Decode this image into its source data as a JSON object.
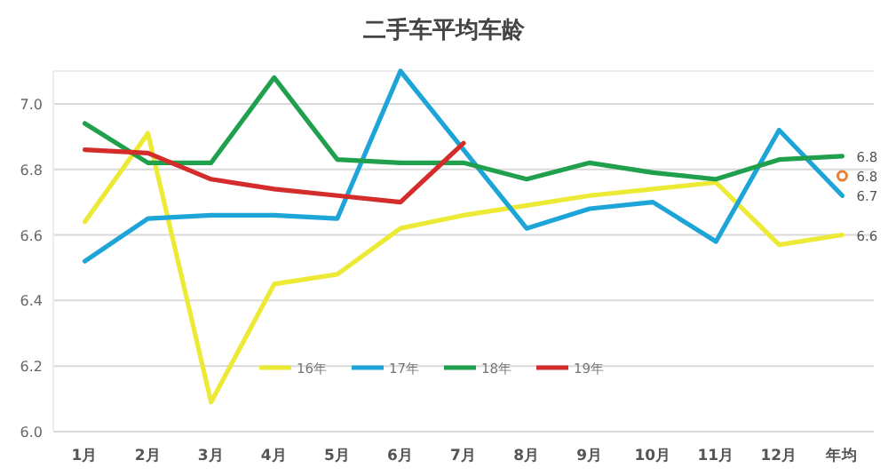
{
  "chart_data": {
    "type": "line",
    "title": "二手车平均车龄",
    "categories": [
      "1月",
      "2月",
      "3月",
      "4月",
      "5月",
      "6月",
      "7月",
      "8月",
      "9月",
      "10月",
      "11月",
      "12月",
      "年均"
    ],
    "series": [
      {
        "name": "16年",
        "color": "#ecea35",
        "values": [
          6.64,
          6.91,
          6.09,
          6.45,
          6.48,
          6.62,
          6.66,
          6.69,
          6.72,
          6.74,
          6.76,
          6.57,
          6.6
        ],
        "value_labels": [
          null,
          null,
          null,
          null,
          null,
          null,
          null,
          null,
          null,
          null,
          null,
          null,
          "6.6"
        ]
      },
      {
        "name": "17年",
        "color": "#1ea5d8",
        "values": [
          6.52,
          6.65,
          6.66,
          6.66,
          6.65,
          7.1,
          6.86,
          6.62,
          6.68,
          6.7,
          6.58,
          6.92,
          6.72
        ],
        "value_labels": [
          null,
          null,
          null,
          null,
          null,
          null,
          null,
          null,
          null,
          null,
          null,
          null,
          "6.7"
        ]
      },
      {
        "name": "18年",
        "color": "#20a04c",
        "values": [
          6.94,
          6.82,
          6.82,
          7.08,
          6.83,
          6.82,
          6.82,
          6.77,
          6.82,
          6.79,
          6.77,
          6.83,
          6.84
        ],
        "value_labels": [
          null,
          null,
          null,
          null,
          null,
          null,
          null,
          null,
          null,
          null,
          null,
          null,
          "6.8"
        ]
      },
      {
        "name": "19年",
        "color": "#d42b2b",
        "values": [
          6.86,
          6.85,
          6.77,
          6.74,
          6.72,
          6.7,
          6.88,
          null,
          null,
          null,
          null,
          null,
          null
        ]
      },
      {
        "type": "scatter",
        "marker": "circle",
        "color": "#e8803a",
        "values": [
          null,
          null,
          null,
          null,
          null,
          null,
          null,
          null,
          null,
          null,
          null,
          null,
          6.78
        ],
        "value_labels": [
          null,
          null,
          null,
          null,
          null,
          null,
          null,
          null,
          null,
          null,
          null,
          null,
          "6.8"
        ]
      }
    ],
    "ylim": [
      6.0,
      7.1
    ],
    "yticks": [
      {
        "value": 6.0,
        "label": "6.0"
      },
      {
        "value": 6.2,
        "label": "6.2"
      },
      {
        "value": 6.4,
        "label": "6.4"
      },
      {
        "value": 6.6,
        "label": "6.6"
      },
      {
        "value": 6.8,
        "label": "6.8"
      },
      {
        "value": 7.0,
        "label": "7.0"
      }
    ],
    "grid": "y",
    "legend": "bottom",
    "line_style": "solid"
  }
}
